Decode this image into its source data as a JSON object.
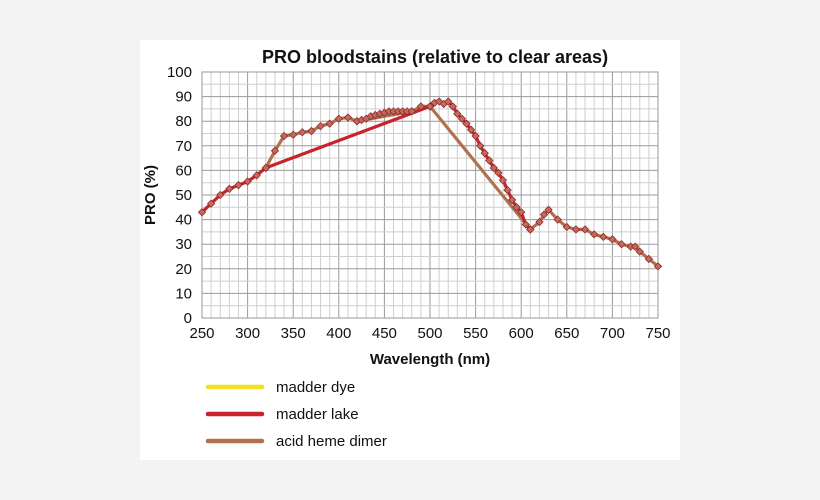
{
  "chart_data": {
    "type": "line",
    "title": "PRO bloodstains (relative to clear areas)",
    "xlabel": "Wavelength (nm)",
    "ylabel": "PRO (%)",
    "xlim": [
      250,
      750
    ],
    "ylim": [
      0,
      100
    ],
    "xticks": [
      250,
      300,
      350,
      400,
      450,
      500,
      550,
      600,
      650,
      700,
      750
    ],
    "yticks": [
      0,
      10,
      20,
      30,
      40,
      50,
      60,
      70,
      80,
      90,
      100
    ],
    "grid": true,
    "legend_position": "bottom-left",
    "series": [
      {
        "name": "madder dye",
        "color": "#f2e11e",
        "x": [
          420,
          425,
          430,
          435,
          440,
          445,
          450,
          455,
          460,
          465,
          470,
          475,
          480
        ],
        "y": [
          80,
          80.5,
          81,
          82,
          82.5,
          83,
          83.5,
          84,
          84,
          84,
          84,
          84,
          84
        ]
      },
      {
        "name": "madder lake",
        "color": "#c8222a",
        "x": [
          250,
          260,
          270,
          280,
          290,
          300,
          310,
          320,
          500,
          505,
          510,
          515,
          520,
          525,
          530,
          535,
          540,
          545,
          550,
          555,
          560,
          565,
          570,
          575,
          580,
          585,
          590,
          595,
          600,
          605,
          610
        ],
        "y": [
          43,
          46.5,
          50,
          52.5,
          54,
          55.5,
          58,
          61,
          86,
          87.5,
          88,
          87,
          88,
          86,
          83,
          81,
          79,
          76.5,
          74,
          70,
          67,
          64,
          61,
          59,
          56,
          52,
          48,
          45,
          43,
          38,
          36
        ]
      },
      {
        "name": "acid heme dimer",
        "color": "#b0714f",
        "x": [
          320,
          330,
          340,
          350,
          360,
          370,
          380,
          390,
          400,
          410,
          420,
          480,
          490,
          500,
          610,
          620,
          625,
          630,
          640,
          650,
          660,
          670,
          680,
          690,
          700,
          710,
          720,
          725,
          730,
          740,
          750
        ],
        "y": [
          61,
          68,
          74,
          74.5,
          75.5,
          76,
          78,
          79,
          81,
          81.5,
          80,
          84,
          86,
          86,
          36,
          39,
          42,
          44,
          40,
          37,
          36,
          36,
          34,
          33,
          32,
          30,
          29,
          29,
          27,
          24,
          21
        ]
      }
    ]
  }
}
